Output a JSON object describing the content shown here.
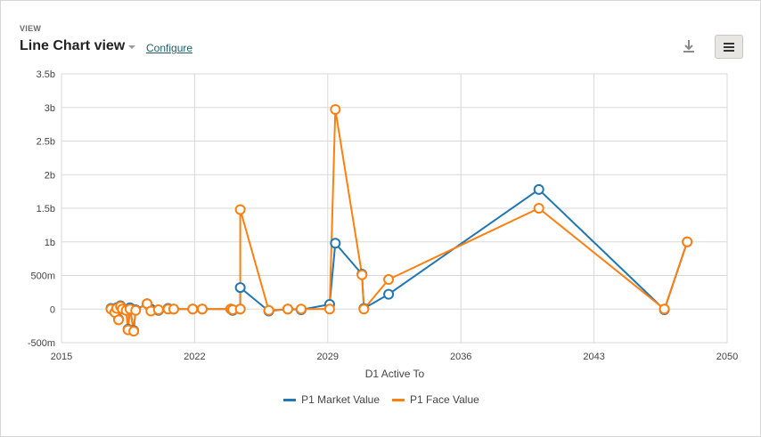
{
  "header": {
    "eyebrow": "VIEW",
    "title": "Line Chart view",
    "configure_label": "Configure"
  },
  "icons": {
    "download": "download-icon",
    "menu": "hamburger-menu-icon",
    "dropdown": "caret-down-icon"
  },
  "colors": {
    "market": "#1f77b4",
    "face": "#ff7f0e",
    "grid": "#d9d9d9"
  },
  "chart_data": {
    "type": "line",
    "xlabel": "D1 Active To",
    "ylabel": "",
    "xlim": [
      2015,
      2050
    ],
    "ylim": [
      -500000000,
      3500000000
    ],
    "x_ticks": [
      2015,
      2022,
      2029,
      2036,
      2043,
      2050
    ],
    "x_tick_labels": [
      "2015",
      "2022",
      "2029",
      "2036",
      "2043",
      "2050"
    ],
    "y_ticks": [
      -500000000,
      0,
      500000000,
      1000000000,
      1500000000,
      2000000000,
      2500000000,
      3000000000,
      3500000000
    ],
    "y_tick_labels": [
      "-500m",
      "0",
      "500m",
      "1b",
      "1.5b",
      "2b",
      "2.5b",
      "3b",
      "3.5b"
    ],
    "grid": true,
    "legend_position": "bottom",
    "series": [
      {
        "name": "P1 Market Value",
        "color": "#1f77b4",
        "points": [
          [
            2017.6,
            10000000
          ],
          [
            2017.8,
            -30000000
          ],
          [
            2017.9,
            20000000
          ],
          [
            2018.0,
            -150000000
          ],
          [
            2018.1,
            50000000
          ],
          [
            2018.2,
            10000000
          ],
          [
            2018.4,
            -10000000
          ],
          [
            2018.5,
            -300000000
          ],
          [
            2018.6,
            20000000
          ],
          [
            2018.8,
            -320000000
          ],
          [
            2018.9,
            -10000000
          ],
          [
            2019.5,
            80000000
          ],
          [
            2019.7,
            0
          ],
          [
            2020.1,
            -20000000
          ],
          [
            2020.6,
            10000000
          ],
          [
            2020.9,
            0
          ],
          [
            2021.9,
            0
          ],
          [
            2022.4,
            0
          ],
          [
            2023.9,
            0
          ],
          [
            2024.0,
            -20000000
          ],
          [
            2024.4,
            0
          ],
          [
            2024.4,
            320000000
          ],
          [
            2025.9,
            -30000000
          ],
          [
            2026.9,
            0
          ],
          [
            2027.6,
            -10000000
          ],
          [
            2029.1,
            70000000
          ],
          [
            2029.4,
            980000000
          ],
          [
            2030.8,
            520000000
          ],
          [
            2030.9,
            10000000
          ],
          [
            2032.2,
            220000000
          ],
          [
            2040.1,
            1780000000
          ],
          [
            2046.7,
            -10000000
          ],
          [
            2047.9,
            1000000000
          ]
        ]
      },
      {
        "name": "P1 Face Value",
        "color": "#ff7f0e",
        "points": [
          [
            2017.6,
            0
          ],
          [
            2017.8,
            -50000000
          ],
          [
            2017.9,
            10000000
          ],
          [
            2018.0,
            -160000000
          ],
          [
            2018.1,
            40000000
          ],
          [
            2018.2,
            0
          ],
          [
            2018.4,
            -20000000
          ],
          [
            2018.5,
            -310000000
          ],
          [
            2018.6,
            0
          ],
          [
            2018.8,
            -330000000
          ],
          [
            2018.9,
            -20000000
          ],
          [
            2019.5,
            80000000
          ],
          [
            2019.7,
            -30000000
          ],
          [
            2020.1,
            -10000000
          ],
          [
            2020.6,
            0
          ],
          [
            2020.9,
            0
          ],
          [
            2021.9,
            0
          ],
          [
            2022.4,
            0
          ],
          [
            2023.9,
            0
          ],
          [
            2024.0,
            -10000000
          ],
          [
            2024.4,
            0
          ],
          [
            2024.4,
            1480000000
          ],
          [
            2025.9,
            -20000000
          ],
          [
            2026.9,
            0
          ],
          [
            2027.6,
            0
          ],
          [
            2029.1,
            0
          ],
          [
            2029.4,
            2970000000
          ],
          [
            2030.8,
            510000000
          ],
          [
            2030.9,
            0
          ],
          [
            2032.2,
            440000000
          ],
          [
            2040.1,
            1500000000
          ],
          [
            2046.7,
            0
          ],
          [
            2047.9,
            1000000000
          ]
        ]
      }
    ]
  }
}
